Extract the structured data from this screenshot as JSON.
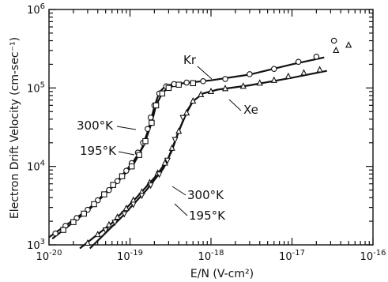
{
  "chart_data": {
    "type": "scatter",
    "title": "",
    "xlabel": "E/N (V-cm²)",
    "ylabel": "Electron Drift Velocity (cm-sec⁻¹)",
    "x_scale": "log",
    "y_scale": "log",
    "xlim": [
      1e-20,
      1e-16
    ],
    "ylim": [
      1000,
      1000000
    ],
    "grid": false,
    "x_ticks": [
      {
        "base": "10",
        "exp": "-20"
      },
      {
        "base": "10",
        "exp": "-19"
      },
      {
        "base": "10",
        "exp": "-18"
      },
      {
        "base": "10",
        "exp": "-17"
      },
      {
        "base": "10",
        "exp": "-16"
      }
    ],
    "y_ticks": [
      {
        "base": "10",
        "exp": "3"
      },
      {
        "base": "10",
        "exp": "4"
      },
      {
        "base": "10",
        "exp": "5"
      },
      {
        "base": "10",
        "exp": "6"
      }
    ],
    "annotations": {
      "kr": "Kr",
      "xe": "Xe",
      "kr_300": "300°K",
      "kr_195": "195°K",
      "xe_300": "300°K",
      "xe_195": "195°K"
    },
    "series": [
      {
        "gas": "Kr",
        "temperature": "300°K",
        "marker": "circle",
        "x": [
          1.2e-20,
          1.6e-20,
          2.2e-20,
          3e-20,
          4e-20,
          5.5e-20,
          7e-20,
          9e-20,
          1.05e-19,
          1.25e-19,
          1.45e-19,
          1.65e-19,
          1.8e-19,
          2e-19,
          2.3e-19,
          2.8e-19,
          3.5e-19,
          5e-19,
          8e-19,
          1.5e-18,
          3e-18,
          6e-18,
          1.2e-17,
          2e-17,
          3.3e-17
        ],
        "y": [
          1400,
          1750,
          2200,
          2800,
          3700,
          5000,
          6500,
          8800,
          11000,
          15000,
          20000,
          30000,
          42000,
          60000,
          85000,
          105000,
          112000,
          117000,
          122000,
          130000,
          150000,
          175000,
          215000,
          250000,
          400000
        ]
      },
      {
        "gas": "Kr",
        "temperature": "195°K",
        "marker": "square",
        "x": [
          1.5e-20,
          2e-20,
          2.7e-20,
          3.6e-20,
          4.8e-20,
          6.2e-20,
          8e-20,
          1.05e-19,
          1.3e-19,
          1.55e-19,
          1.85e-19,
          2.1e-19,
          2.5e-19,
          3e-19,
          4e-19,
          6e-19
        ],
        "y": [
          1550,
          1950,
          2500,
          3300,
          4400,
          5800,
          7500,
          10000,
          14000,
          21000,
          36000,
          60000,
          85000,
          100000,
          110000,
          115000
        ]
      },
      {
        "gas": "Xe",
        "temperature": "300°K",
        "marker": "triangle",
        "x": [
          3e-20,
          4e-20,
          5.5e-20,
          7e-20,
          9e-20,
          1.1e-19,
          1.4e-19,
          1.75e-19,
          2.2e-19,
          2.7e-19,
          3.3e-19,
          4e-19,
          5e-19,
          6e-19,
          7.5e-19,
          1e-18,
          1.5e-18,
          2.5e-18,
          4e-18,
          6e-18,
          9e-18,
          1.4e-17,
          2.2e-17,
          3.5e-17,
          5e-17
        ],
        "y": [
          1050,
          1350,
          1800,
          2250,
          2900,
          3700,
          4700,
          6200,
          8200,
          11000,
          17000,
          28000,
          48000,
          68000,
          82000,
          90000,
          98000,
          105000,
          115000,
          125000,
          140000,
          155000,
          170000,
          300000,
          350000
        ]
      },
      {
        "gas": "Xe",
        "temperature": "195°K",
        "marker": "down-triangle",
        "x": [
          5e-20,
          6.5e-20,
          8.5e-20,
          1.1e-19,
          1.4e-19,
          1.8e-19,
          2.3e-19,
          2.9e-19,
          3.6e-19,
          4.5e-19
        ],
        "y": [
          1550,
          1950,
          2500,
          3300,
          4300,
          5800,
          8000,
          12000,
          22000,
          42000
        ]
      }
    ],
    "curves": [
      {
        "gas": "Kr",
        "temperature": "300°K",
        "x": [
          1e-20,
          3e-20,
          7e-20,
          1.1e-19,
          1.4e-19,
          1.7e-19,
          2e-19,
          2.3e-19,
          2.8e-19,
          5e-19,
          1e-18,
          3e-18,
          1e-17,
          2.5e-17
        ],
        "y": [
          1250,
          2800,
          6500,
          11500,
          17000,
          30000,
          58000,
          88000,
          108000,
          116000,
          125000,
          148000,
          200000,
          245000
        ]
      },
      {
        "gas": "Kr",
        "temperature": "195°K",
        "x": [
          1.1e-20,
          3e-20,
          7e-20,
          1.1e-19,
          1.5e-19,
          1.85e-19,
          2.1e-19,
          2.5e-19,
          3e-19,
          4e-19
        ],
        "y": [
          1200,
          2700,
          6300,
          10500,
          19000,
          36000,
          60000,
          86000,
          102000,
          110000
        ]
      },
      {
        "gas": "Xe",
        "temperature": "300°K",
        "x": [
          2.4e-20,
          6e-20,
          1.2e-19,
          2.2e-19,
          3e-19,
          4e-19,
          5e-19,
          6e-19,
          8e-19,
          1.2e-18,
          3e-18,
          1e-17,
          2.7e-17
        ],
        "y": [
          900,
          1900,
          4000,
          8000,
          13000,
          28000,
          48000,
          68000,
          85000,
          95000,
          108000,
          135000,
          165000
        ]
      },
      {
        "gas": "Xe",
        "temperature": "195°K",
        "x": [
          3.2e-20,
          8e-20,
          1.6e-19,
          2.6e-19,
          3.3e-19,
          4e-19,
          5e-19,
          6e-19
        ],
        "y": [
          900,
          2300,
          5000,
          9500,
          16000,
          28000,
          50000,
          68000
        ]
      }
    ]
  }
}
